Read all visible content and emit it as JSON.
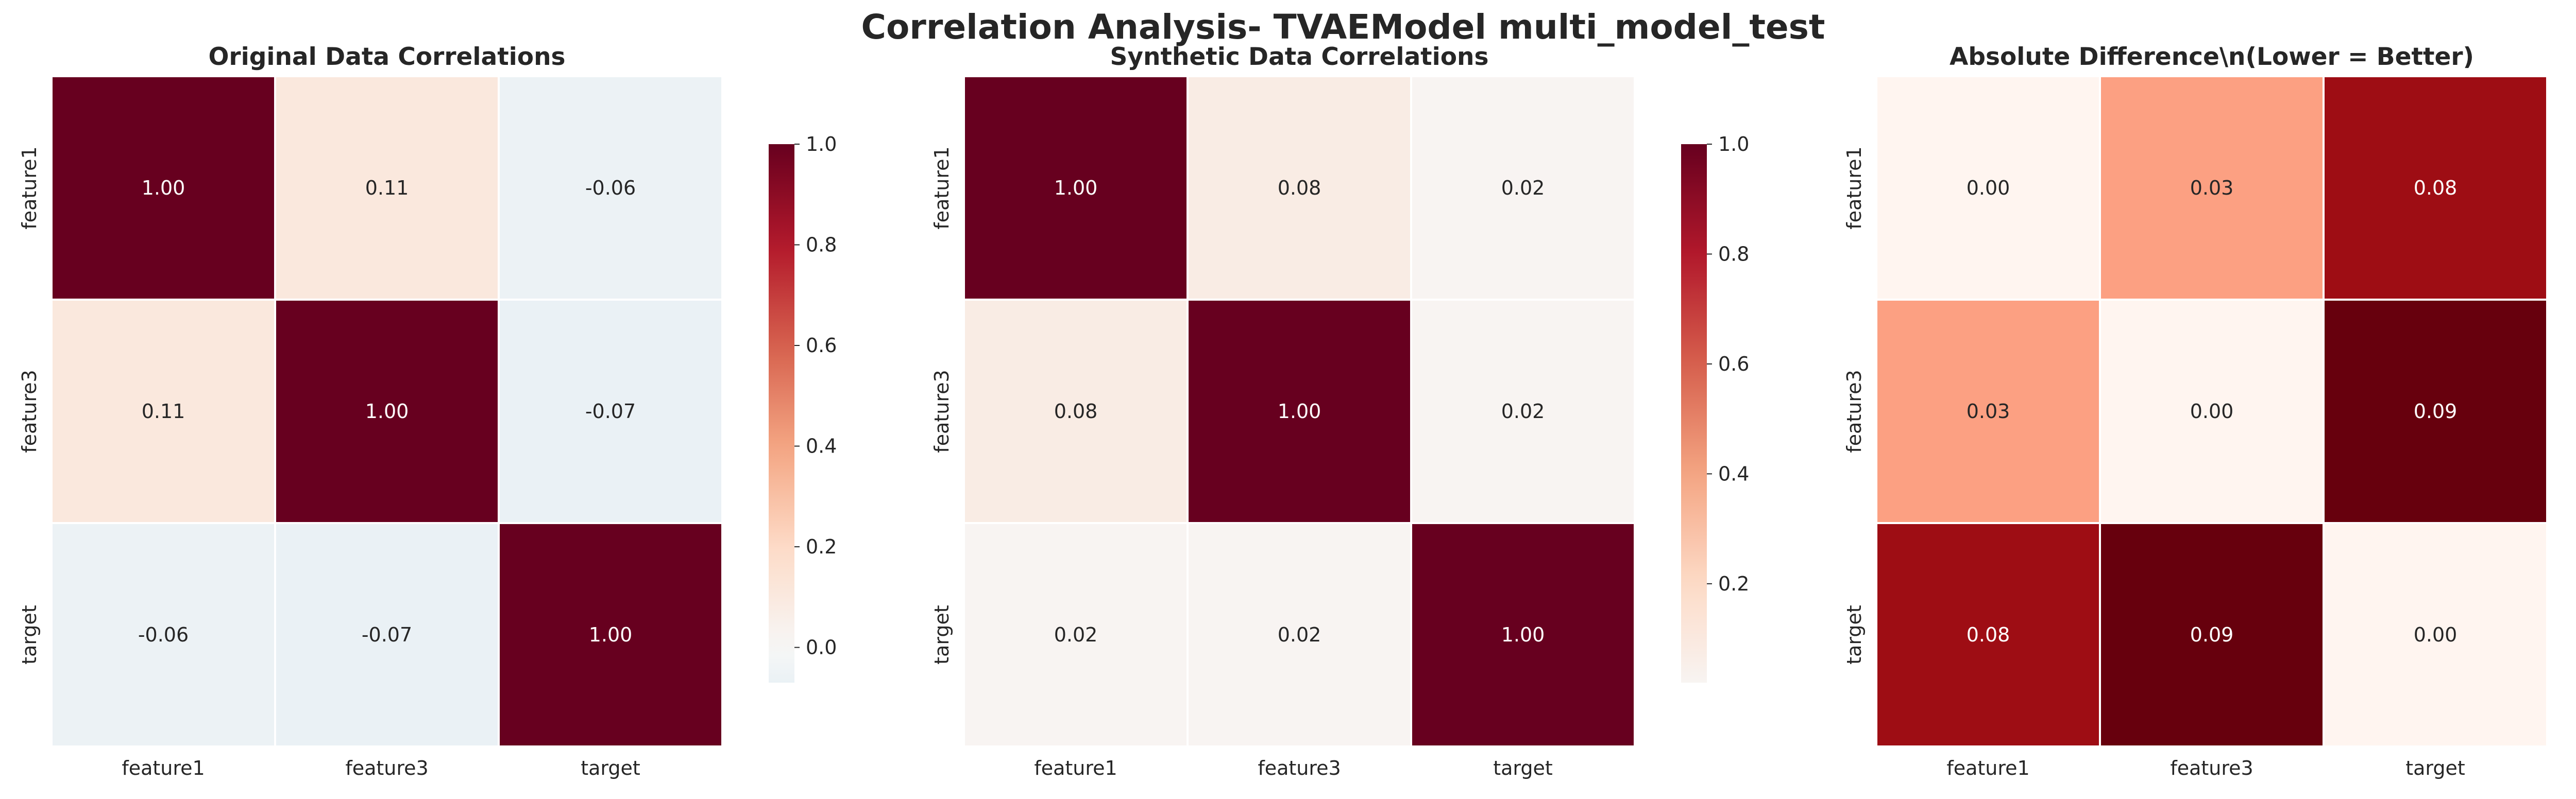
{
  "suptitle": "Correlation Analysis- TVAEModel multi_model_test",
  "chart_data": [
    {
      "type": "heatmap",
      "title": "Original Data Correlations",
      "x_labels": [
        "feature1",
        "feature3",
        "target"
      ],
      "y_labels": [
        "feature1",
        "feature3",
        "target"
      ],
      "values": [
        [
          1.0,
          0.11,
          -0.06
        ],
        [
          0.11,
          1.0,
          -0.07
        ],
        [
          -0.06,
          -0.07,
          1.0
        ]
      ],
      "value_format": "0.00",
      "colormap": "diverging-RdBu_r",
      "vmin": -0.07,
      "vmax": 1.0,
      "colorbar_ticks": [
        "0.0",
        "0.2",
        "0.4",
        "0.6",
        "0.8",
        "1.0"
      ]
    },
    {
      "type": "heatmap",
      "title": "Synthetic Data Correlations",
      "x_labels": [
        "feature1",
        "feature3",
        "target"
      ],
      "y_labels": [
        "feature1",
        "feature3",
        "target"
      ],
      "values": [
        [
          1.0,
          0.08,
          0.02
        ],
        [
          0.08,
          1.0,
          0.02
        ],
        [
          0.02,
          0.02,
          1.0
        ]
      ],
      "value_format": "0.00",
      "colormap": "diverging-RdBu_r",
      "vmin": 0.02,
      "vmax": 1.0,
      "colorbar_ticks": [
        "0.2",
        "0.4",
        "0.6",
        "0.8",
        "1.0"
      ]
    },
    {
      "type": "heatmap",
      "title": "Absolute Difference\\n(Lower = Better)",
      "x_labels": [
        "feature1",
        "feature3",
        "target"
      ],
      "y_labels": [
        "feature1",
        "feature3",
        "target"
      ],
      "values": [
        [
          0.0,
          0.03,
          0.08
        ],
        [
          0.03,
          0.0,
          0.09
        ],
        [
          0.08,
          0.09,
          0.0
        ]
      ],
      "value_format": "0.00",
      "colormap": "sequential-Reds",
      "vmin": 0.0,
      "vmax": 0.09,
      "colorbar_ticks": [
        "0.00",
        "0.02",
        "0.04",
        "0.06",
        "0.08"
      ]
    }
  ]
}
